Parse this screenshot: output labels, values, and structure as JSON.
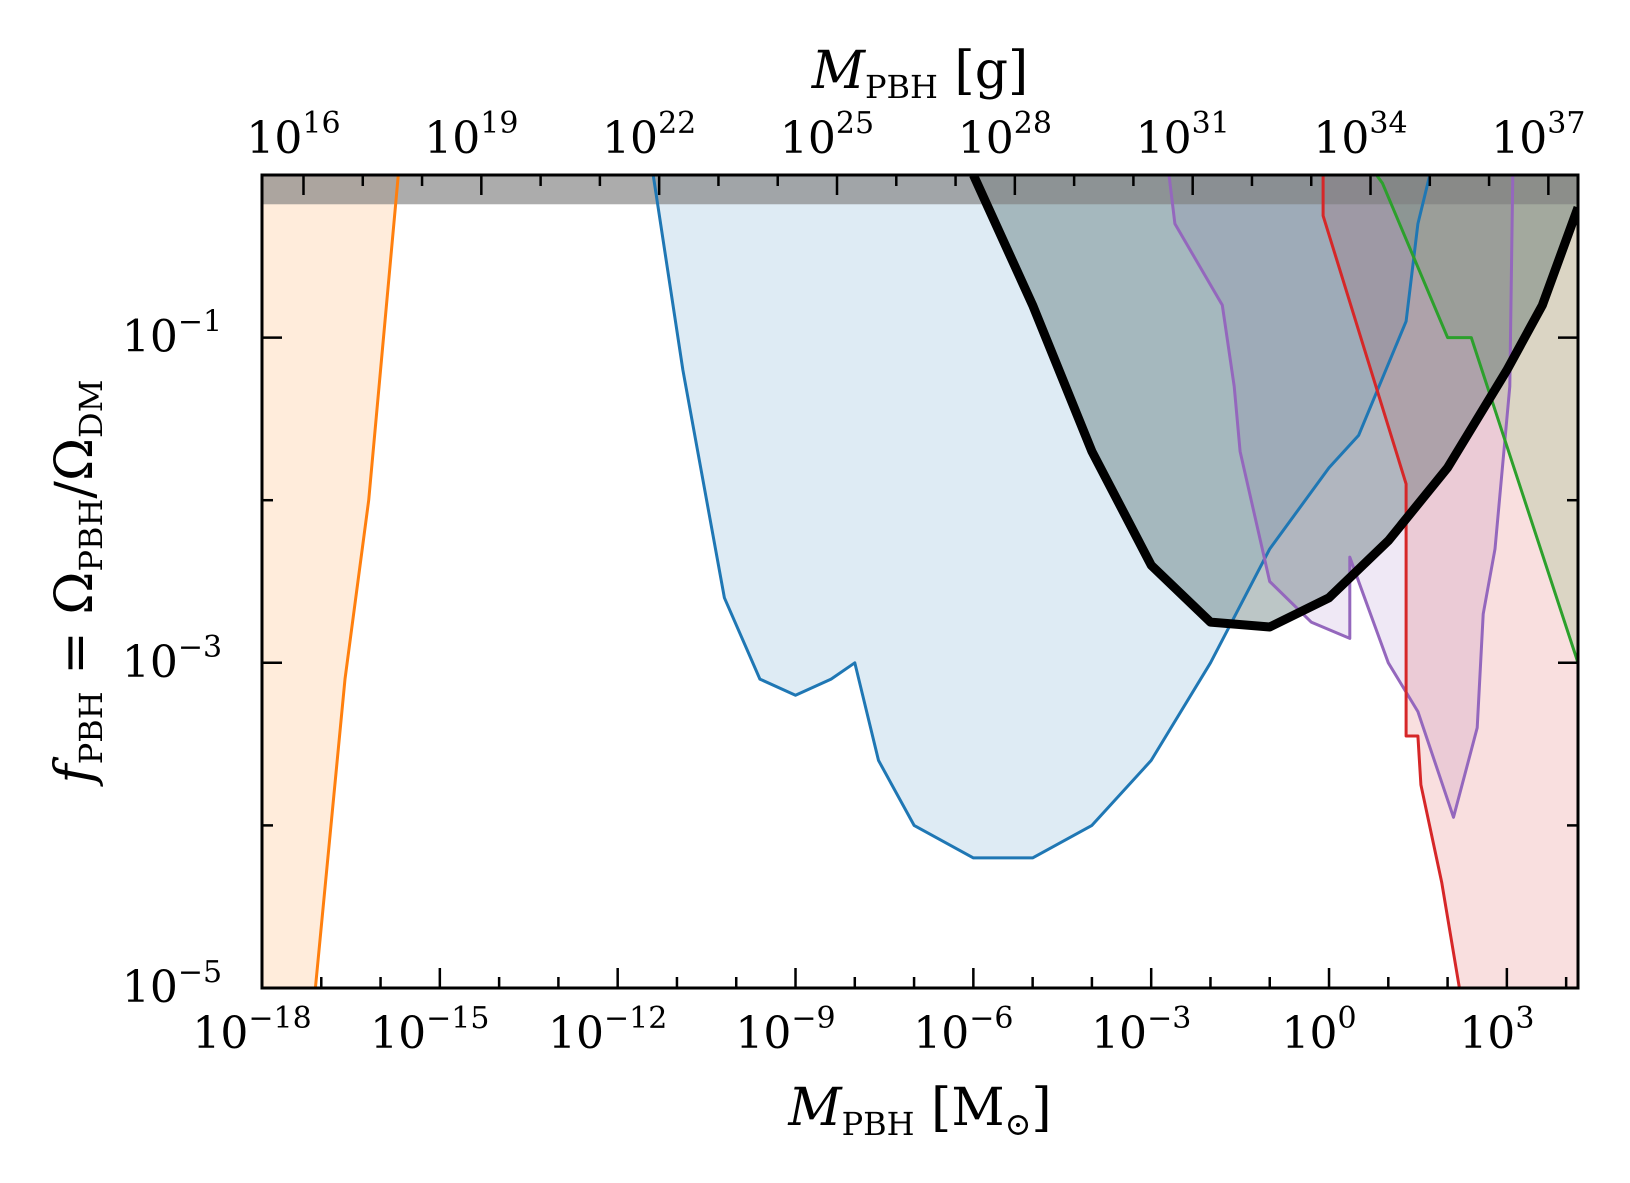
{
  "chart_data": {
    "type": "area",
    "x_axis": {
      "label": "M",
      "label_sub": "PBH",
      "label_unit": "[M",
      "label_unit_sub": "⊙",
      "label_unit_close": "]",
      "scale": "log",
      "range_log10": [
        -18,
        4.2
      ],
      "tick_labels": [
        {
          "base": "10",
          "exp": "−18"
        },
        {
          "base": "10",
          "exp": "−15"
        },
        {
          "base": "10",
          "exp": "−12"
        },
        {
          "base": "10",
          "exp": "−9"
        },
        {
          "base": "10",
          "exp": "−6"
        },
        {
          "base": "10",
          "exp": "−3"
        },
        {
          "base": "10",
          "exp": "0"
        },
        {
          "base": "10",
          "exp": "3"
        }
      ],
      "tick_log10": [
        -18,
        -15,
        -12,
        -9,
        -6,
        -3,
        0,
        3
      ]
    },
    "top_axis": {
      "label": "M",
      "label_sub": "PBH",
      "label_unit": "[g]",
      "scale": "log",
      "tick_labels": [
        {
          "base": "10",
          "exp": "16"
        },
        {
          "base": "10",
          "exp": "19"
        },
        {
          "base": "10",
          "exp": "22"
        },
        {
          "base": "10",
          "exp": "25"
        },
        {
          "base": "10",
          "exp": "28"
        },
        {
          "base": "10",
          "exp": "31"
        },
        {
          "base": "10",
          "exp": "34"
        },
        {
          "base": "10",
          "exp": "37"
        }
      ],
      "tick_log10_g": [
        16,
        19,
        22,
        25,
        28,
        31,
        34,
        37
      ]
    },
    "y_axis": {
      "label": "f",
      "label_sub": "PBH",
      "label_rest": " = Ω",
      "label_rest_sub": "PBH",
      "label_rest2": "/Ω",
      "label_rest2_sub": "DM",
      "scale": "log",
      "range_log10": [
        -5,
        0
      ],
      "tick_labels": [
        {
          "base": "10",
          "exp": "−5"
        },
        {
          "base": "10",
          "exp": "−3"
        },
        {
          "base": "10",
          "exp": "−1"
        }
      ],
      "tick_log10": [
        -5,
        -3,
        -1
      ]
    },
    "unity_band": {
      "y_log10_from": -0.18,
      "y_log10_to": 0,
      "color": "#808080"
    },
    "series": [
      {
        "color": "#ff7f0e",
        "fill": "#ff7f0e",
        "fill_opacity": 0.15,
        "points_log10": [
          [
            -18.0,
            0.0
          ],
          [
            -15.7,
            0.0
          ],
          [
            -16.2,
            -2.0
          ],
          [
            -17.1,
            -5.0
          ],
          [
            -18.0,
            -5.0
          ]
        ],
        "outline": [
          [
            -17.1,
            -5.0
          ],
          [
            -16.6,
            -3.1
          ],
          [
            -16.2,
            -2.0
          ],
          [
            -15.7,
            0.0
          ]
        ]
      },
      {
        "color": "#1f77b4",
        "fill": "#1f77b4",
        "fill_opacity": 0.15,
        "outline": [
          [
            -11.4,
            0.0
          ],
          [
            -10.9,
            -1.2
          ],
          [
            -10.2,
            -2.6
          ],
          [
            -9.6,
            -3.1
          ],
          [
            -9.0,
            -3.2
          ],
          [
            -8.4,
            -3.1
          ],
          [
            -8.0,
            -3.0
          ],
          [
            -7.6,
            -3.6
          ],
          [
            -7.0,
            -4.0
          ],
          [
            -6.0,
            -4.2
          ],
          [
            -5.0,
            -4.2
          ],
          [
            -4.0,
            -4.0
          ],
          [
            -3.0,
            -3.6
          ],
          [
            -2.0,
            -3.0
          ],
          [
            -1.0,
            -2.3
          ],
          [
            0.0,
            -1.8
          ],
          [
            0.5,
            -1.6
          ],
          [
            1.3,
            -0.9
          ],
          [
            1.5,
            -0.3
          ],
          [
            1.7,
            0.0
          ]
        ],
        "notch": [
          [
            1.3,
            -2.3
          ],
          [
            1.6,
            -2.3
          ],
          [
            1.6,
            -2.0
          ]
        ]
      },
      {
        "color": "#9467bd",
        "fill": "#9467bd",
        "fill_opacity": 0.15,
        "outline": [
          [
            -2.7,
            0.0
          ],
          [
            -2.6,
            -0.25
          ],
          [
            -1.8,
            -0.95
          ],
          [
            -1.0,
            -1.85
          ],
          [
            -0.7,
            -2.85
          ],
          [
            0.3,
            -2.95
          ],
          [
            0.3,
            -2.45
          ],
          [
            1.0,
            -3.0
          ],
          [
            1.3,
            -3.4
          ],
          [
            2.1,
            -3.7
          ],
          [
            2.5,
            -3.1
          ],
          [
            2.5,
            -2.3
          ],
          [
            2.7,
            -1.9
          ],
          [
            2.9,
            -1.3
          ],
          [
            3.1,
            0.0
          ]
        ],
        "outline_main": [
          [
            -2.7,
            0.0
          ],
          [
            -2.6,
            -0.3
          ],
          [
            -1.8,
            -0.8
          ],
          [
            -1.6,
            -1.3
          ],
          [
            -1.5,
            -1.7
          ],
          [
            -1.0,
            -2.5
          ],
          [
            -0.3,
            -2.75
          ],
          [
            0.35,
            -2.85
          ],
          [
            0.35,
            -2.35
          ],
          [
            0.6,
            -2.6
          ],
          [
            1.0,
            -3.0
          ],
          [
            1.5,
            -3.3
          ],
          [
            2.1,
            -3.95
          ],
          [
            2.5,
            -3.4
          ],
          [
            2.6,
            -2.7
          ],
          [
            2.8,
            -2.3
          ],
          [
            3.05,
            -1.3
          ],
          [
            3.1,
            0.0
          ]
        ]
      },
      {
        "color": "#d62728",
        "fill": "#d62728",
        "fill_opacity": 0.15,
        "outline": [
          [
            0.0,
            0.0
          ],
          [
            0.2,
            -0.2
          ],
          [
            1.0,
            -1.0
          ],
          [
            1.3,
            -1.6
          ],
          [
            1.4,
            -2.5
          ],
          [
            1.4,
            -3.5
          ],
          [
            1.6,
            -3.5
          ],
          [
            1.7,
            -4.0
          ],
          [
            2.0,
            -4.5
          ],
          [
            2.2,
            -5.0
          ]
        ],
        "outline_main": [
          [
            -0.1,
            0.0
          ],
          [
            -0.1,
            -0.25
          ],
          [
            1.3,
            -1.9
          ],
          [
            1.3,
            -2.5
          ],
          [
            1.3,
            -3.45
          ],
          [
            1.5,
            -3.45
          ],
          [
            1.55,
            -3.75
          ],
          [
            1.9,
            -4.35
          ],
          [
            2.2,
            -5.0
          ]
        ]
      },
      {
        "color": "#2ca02c",
        "fill": "#2ca02c",
        "fill_opacity": 0.15,
        "outline_main": [
          [
            0.8,
            0.0
          ],
          [
            0.9,
            -0.05
          ],
          [
            2.0,
            -1.0
          ],
          [
            2.4,
            -1.0
          ],
          [
            3.3,
            -2.0
          ],
          [
            4.2,
            -3.0
          ]
        ]
      },
      {
        "color": "#000000",
        "fill": "#2f4f4f",
        "fill_opacity": 0.32,
        "bold": true,
        "outline_main": [
          [
            -6.0,
            0.0
          ],
          [
            -5.0,
            -0.8
          ],
          [
            -4.0,
            -1.7
          ],
          [
            -3.0,
            -2.4
          ],
          [
            -2.0,
            -2.75
          ],
          [
            -1.0,
            -2.78
          ],
          [
            0.0,
            -2.6
          ],
          [
            1.0,
            -2.25
          ],
          [
            2.0,
            -1.8
          ],
          [
            3.0,
            -1.2
          ],
          [
            3.6,
            -0.8
          ],
          [
            4.2,
            -0.2
          ]
        ]
      }
    ]
  }
}
